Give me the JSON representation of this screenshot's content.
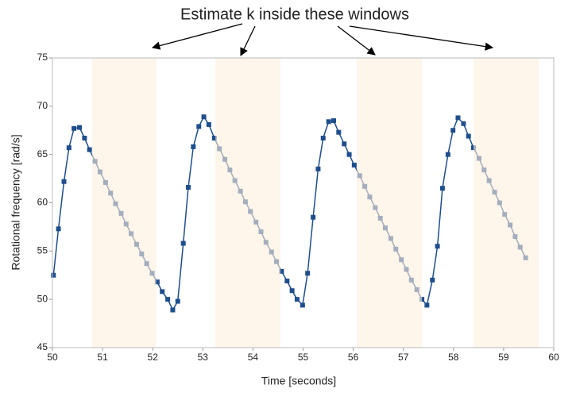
{
  "chart_data": {
    "type": "line",
    "annotation": "Estimate k inside these windows",
    "xlabel": "Time [seconds]",
    "ylabel": "Rotational frequency [rad/s]",
    "xlim": [
      50,
      60
    ],
    "xticks": [
      50,
      51,
      52,
      53,
      54,
      55,
      56,
      57,
      58,
      59,
      60
    ],
    "ylim": [
      45,
      75
    ],
    "yticks": [
      45,
      50,
      55,
      60,
      65,
      70,
      75
    ],
    "windows": [
      [
        50.79,
        52.07
      ],
      [
        53.25,
        54.55
      ],
      [
        56.07,
        57.37
      ],
      [
        58.4,
        59.7
      ]
    ],
    "window_color": "#fdeedd",
    "series": [
      {
        "color": "#1f4e8c",
        "x": [
          50.02,
          50.12,
          50.23,
          50.33,
          50.43,
          50.54,
          50.64,
          50.74,
          50.85,
          50.95,
          51.06,
          51.16,
          51.26,
          51.37,
          51.47,
          51.57,
          51.68,
          51.78,
          51.88,
          51.99,
          52.09,
          52.19,
          52.3,
          52.4,
          52.5,
          52.61,
          52.71,
          52.81,
          52.92,
          53.02,
          53.12,
          53.23,
          53.33,
          53.44,
          53.54,
          53.64,
          53.75,
          53.85,
          53.95,
          54.06,
          54.16,
          54.26,
          54.37,
          54.47,
          54.57,
          54.68,
          54.78,
          54.88,
          54.99,
          55.09,
          55.2,
          55.3,
          55.4,
          55.51,
          55.61,
          55.71,
          55.82,
          55.92,
          56.02,
          56.13,
          56.23,
          56.33,
          56.44,
          56.54,
          56.64,
          56.75,
          56.85,
          56.96,
          57.06,
          57.16,
          57.27,
          57.37,
          57.47,
          57.58,
          57.68,
          57.78,
          57.89,
          57.99,
          58.09,
          58.2,
          58.3,
          58.4,
          58.51,
          58.61,
          58.71,
          58.82,
          58.92,
          59.02,
          59.13,
          59.23,
          59.33,
          59.44
        ],
        "values": [
          52.5,
          57.3,
          62.2,
          65.7,
          67.7,
          67.8,
          66.7,
          65.5,
          64.3,
          63.2,
          62.1,
          61.0,
          59.9,
          58.9,
          57.8,
          56.8,
          55.7,
          54.7,
          53.7,
          52.7,
          51.8,
          50.8,
          50.0,
          48.9,
          49.8,
          55.8,
          61.6,
          65.8,
          67.9,
          68.9,
          68.1,
          66.7,
          65.6,
          64.5,
          63.4,
          62.3,
          61.2,
          60.1,
          59.1,
          58.0,
          57.0,
          55.9,
          54.9,
          53.9,
          52.9,
          51.9,
          50.9,
          50.0,
          49.4,
          52.7,
          58.5,
          63.5,
          66.7,
          68.4,
          68.5,
          67.3,
          66.1,
          65.0,
          63.9,
          62.8,
          61.7,
          60.6,
          59.5,
          58.4,
          57.4,
          56.3,
          55.2,
          54.1,
          53.1,
          52.0,
          51.0,
          50.0,
          49.4,
          52.0,
          55.5,
          61.5,
          65.0,
          67.5,
          68.8,
          68.2,
          66.9,
          65.7,
          64.6,
          63.4,
          62.3,
          61.1,
          60.0,
          58.8,
          57.7,
          56.5,
          55.4,
          54.3
        ]
      }
    ]
  }
}
